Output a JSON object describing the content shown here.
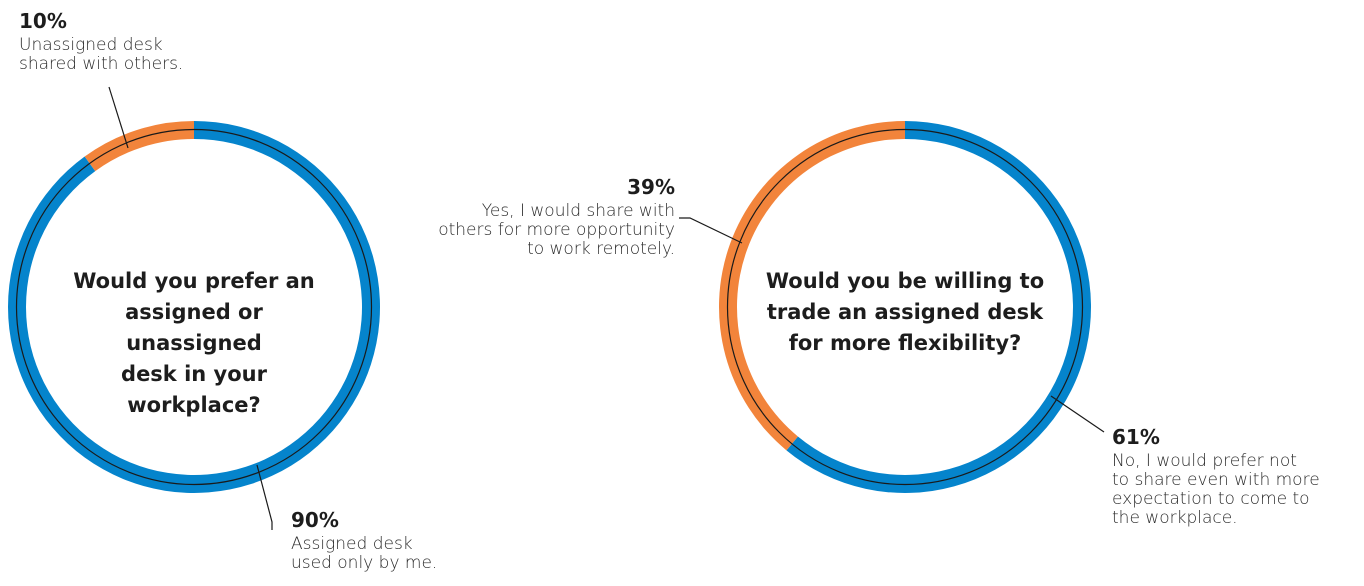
{
  "colors": {
    "assigned": "#0584cc",
    "unassigned": "#f2843b",
    "outline": "#1a1a1a"
  },
  "chart_data": [
    {
      "type": "pie",
      "title": "Would you prefer an assigned or unassigned desk in your workplace?",
      "categories": [
        "Unassigned desk shared with others.",
        "Assigned desk used only by me."
      ],
      "values": [
        10,
        90
      ],
      "value_labels": [
        "10%",
        "90%"
      ],
      "colors": [
        "#f2843b",
        "#0584cc"
      ]
    },
    {
      "type": "pie",
      "title": "Would you be willing to trade an assigned desk for more flexibility?",
      "categories": [
        "No, I would prefer not to share even with more expectation to come to the workplace.",
        "Yes, I would share with others for more opportunity to work remotely."
      ],
      "values": [
        61,
        39
      ],
      "value_labels": [
        "61%",
        "39%"
      ],
      "colors": [
        "#0584cc",
        "#f2843b"
      ]
    }
  ],
  "donut1": {
    "title_lines": [
      "Would you prefer an",
      "assigned or unassigned",
      "desk in your workplace?"
    ],
    "label_unassigned": {
      "pct": "10%",
      "lines": [
        "Unassigned desk",
        "shared with others."
      ]
    },
    "label_assigned": {
      "pct": "90%",
      "lines": [
        "Assigned desk",
        "used only by me."
      ]
    }
  },
  "donut2": {
    "title_lines": [
      "Would you be willing to",
      "trade an assigned desk",
      "for more flexibility?"
    ],
    "label_yes": {
      "pct": "39%",
      "lines": [
        "Yes, I would share with",
        "others for more opportunity",
        "to work remotely."
      ]
    },
    "label_no": {
      "pct": "61%",
      "lines": [
        "No, I would prefer not",
        "to share even with more",
        "expectation to come to",
        "the workplace."
      ]
    }
  }
}
